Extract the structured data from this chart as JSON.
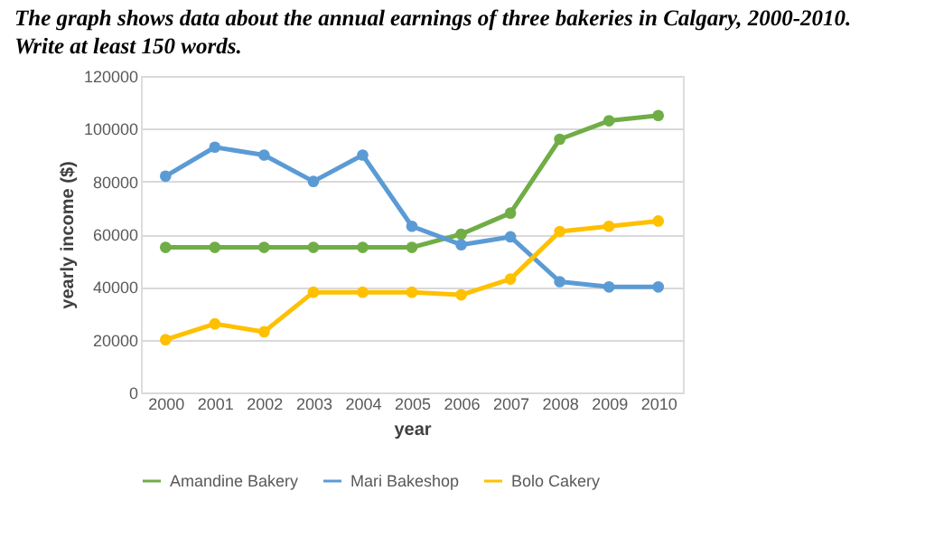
{
  "chart_data": {
    "type": "line",
    "title": "The graph shows data about the annual earnings of three bakeries in Calgary, 2000-2010.",
    "subtitle": "Write at least 150 words.",
    "xlabel": "year",
    "ylabel": "yearly income ($)",
    "categories": [
      "2000",
      "2001",
      "2002",
      "2003",
      "2004",
      "2005",
      "2006",
      "2007",
      "2008",
      "2009",
      "2010"
    ],
    "series": [
      {
        "name": "Amandine Bakery",
        "color": "#70ad47",
        "values": [
          55000,
          55000,
          55000,
          55000,
          55000,
          55000,
          60000,
          68000,
          96000,
          103000,
          105000
        ]
      },
      {
        "name": "Mari Bakeshop",
        "color": "#5b9bd5",
        "values": [
          82000,
          93000,
          90000,
          80000,
          90000,
          63000,
          56000,
          59000,
          42000,
          40000,
          40000
        ]
      },
      {
        "name": "Bolo Cakery",
        "color": "#ffc000",
        "values": [
          20000,
          26000,
          23000,
          38000,
          38000,
          38000,
          37000,
          43000,
          61000,
          63000,
          65000
        ]
      }
    ],
    "ylim": [
      0,
      120000
    ],
    "yticks": [
      0,
      20000,
      40000,
      60000,
      80000,
      100000,
      120000
    ],
    "grid": "y",
    "legend": "bottom",
    "marker": "circle",
    "line_style": "solid"
  }
}
